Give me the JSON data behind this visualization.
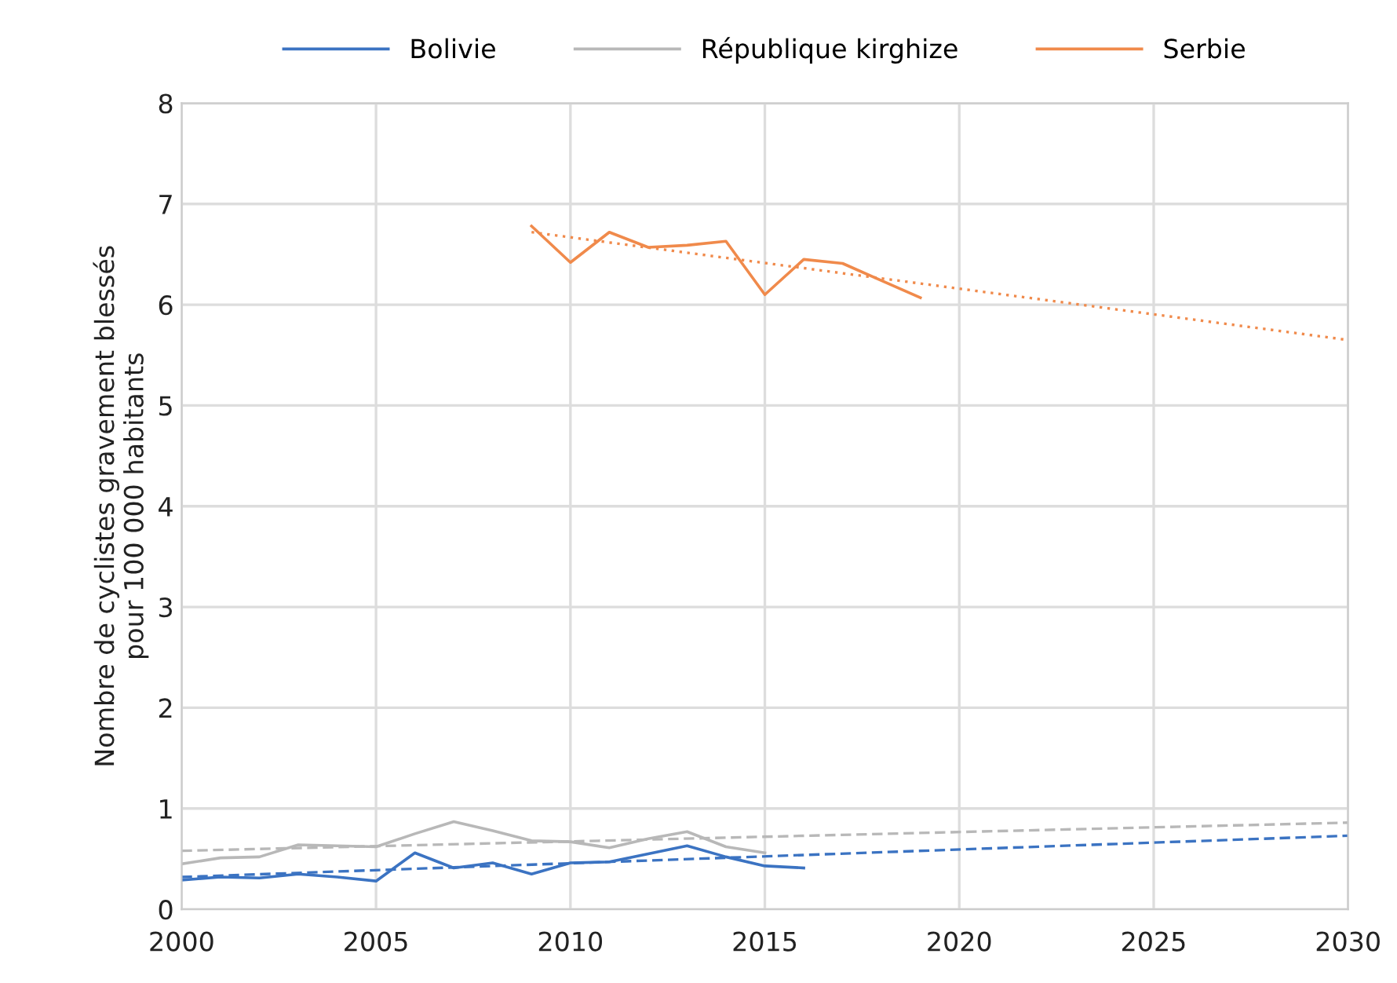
{
  "chart_data": {
    "type": "line",
    "ylabel": "Nombre de cyclistes gravement blessés\npour 100 000 habitants",
    "xlim": [
      2000,
      2030
    ],
    "xticks": [
      2000,
      2005,
      2010,
      2015,
      2020,
      2025,
      2030
    ],
    "ylim": [
      0,
      8
    ],
    "yticks": [
      0,
      1,
      2,
      3,
      4,
      5,
      6,
      7,
      8
    ],
    "grid": true,
    "legend": "top",
    "marker": "none",
    "series": [
      {
        "name": "Bolivie",
        "color": "#3b73c2",
        "line_style": "solid",
        "x": [
          2000,
          2001,
          2002,
          2003,
          2004,
          2005,
          2006,
          2007,
          2008,
          2009,
          2010,
          2011,
          2012,
          2013,
          2014,
          2015,
          2016
        ],
        "values": [
          0.29,
          0.32,
          0.31,
          0.35,
          0.32,
          0.28,
          0.56,
          0.41,
          0.46,
          0.35,
          0.46,
          0.47,
          0.55,
          0.63,
          0.52,
          0.43,
          0.41
        ]
      },
      {
        "name": "République kirghize",
        "color": "#b8b8b8",
        "line_style": "solid",
        "x": [
          2000,
          2001,
          2002,
          2003,
          2004,
          2005,
          2006,
          2007,
          2008,
          2009,
          2010,
          2011,
          2012,
          2013,
          2014,
          2015
        ],
        "values": [
          0.45,
          0.51,
          0.52,
          0.64,
          0.63,
          0.62,
          0.75,
          0.87,
          0.78,
          0.68,
          0.67,
          0.61,
          0.7,
          0.77,
          0.62,
          0.56
        ]
      },
      {
        "name": "Serbie",
        "color": "#f08a4b",
        "line_style": "solid",
        "x": [
          2009,
          2010,
          2011,
          2012,
          2013,
          2014,
          2015,
          2016,
          2017,
          2018,
          2019
        ],
        "values": [
          6.78,
          6.42,
          6.72,
          6.57,
          6.59,
          6.63,
          6.1,
          6.45,
          6.41,
          6.24,
          6.07
        ]
      },
      {
        "color": "#3b73c2",
        "line_style": "dashed",
        "x": [
          2000,
          2030
        ],
        "values": [
          0.32,
          0.73
        ]
      },
      {
        "color": "#b8b8b8",
        "line_style": "dashed",
        "x": [
          2000,
          2030
        ],
        "values": [
          0.58,
          0.86
        ]
      },
      {
        "color": "#f08a4b",
        "line_style": "dotted",
        "x": [
          2009,
          2030
        ],
        "values": [
          6.72,
          5.65
        ]
      }
    ]
  }
}
